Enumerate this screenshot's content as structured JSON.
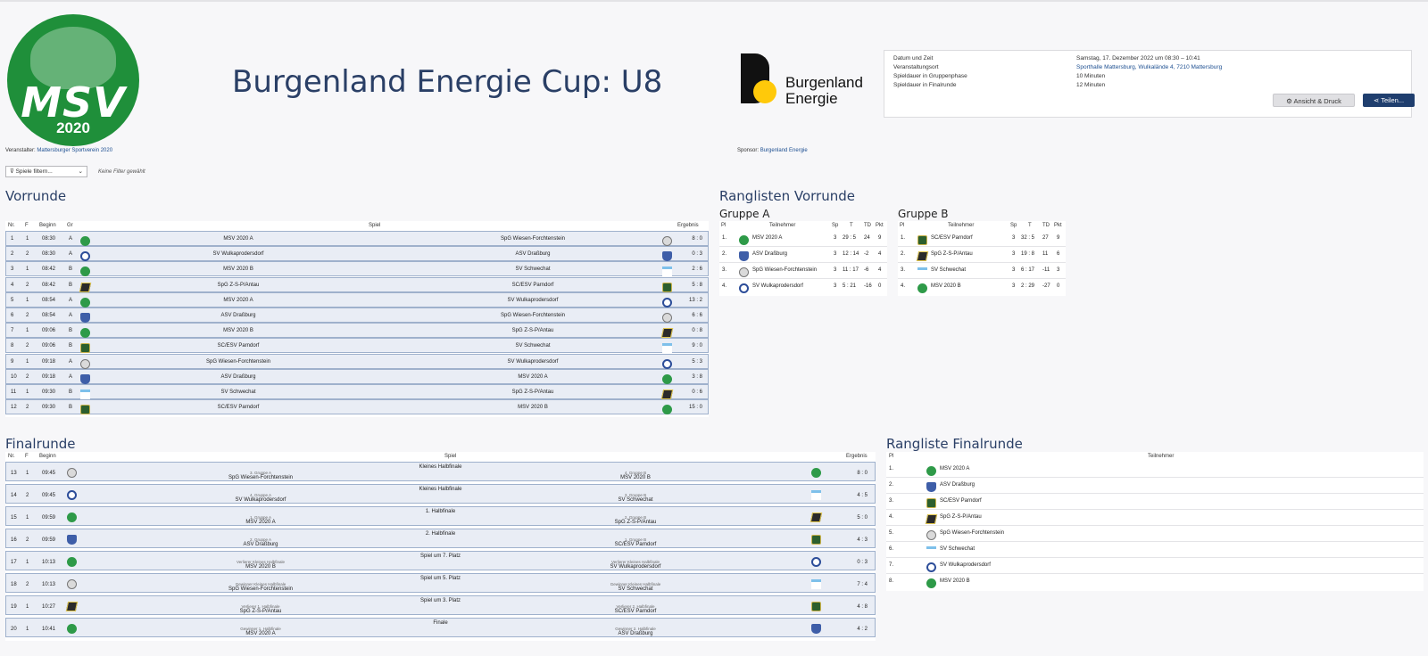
{
  "logo": {
    "text": "MSV",
    "year": "2020"
  },
  "title": "Burgenland Energie Cup: U8",
  "sponsor_logo": {
    "line1": "Burgenland",
    "line2": "Energie"
  },
  "info": [
    {
      "label": "Datum und Zeit",
      "value": "Samstag, 17. Dezember 2022 um 08:30 – 10:41"
    },
    {
      "label": "Veranstaltungsort",
      "value": "Sporthalle Mattersburg, Wulkalände 4, 7210 Mattersburg"
    },
    {
      "label": "Spieldauer in Gruppenphase",
      "value": "10 Minuten"
    },
    {
      "label": "Spieldauer in Finalrunde",
      "value": "12 Minuten"
    }
  ],
  "buttons": {
    "view": "Ansicht & Druck",
    "share": "Teilen..."
  },
  "organizer": {
    "label": "Veranstalter:",
    "name": "Mattersburger Sportverein 2020"
  },
  "sponsor": {
    "label": "Sponsor:",
    "name": "Burgenland Energie"
  },
  "filter": {
    "label": "Spiele filtern...",
    "none": "Keine Filter gewählt"
  },
  "vorrunde": {
    "title": "Vorrunde",
    "headers": [
      "Nr.",
      "F",
      "Beginn",
      "Gr",
      "Spiel",
      "Ergebnis"
    ],
    "rows": [
      {
        "nr": "1",
        "f": "1",
        "time": "08:30",
        "gr": "A",
        "home": "MSV 2020 A",
        "away": "SpG Wiesen-Forchtenstein",
        "result": "8 : 0",
        "hc": "msv",
        "ac": "wies"
      },
      {
        "nr": "2",
        "f": "2",
        "time": "08:30",
        "gr": "A",
        "home": "SV Wulkaprodersdorf",
        "away": "ASV Draßburg",
        "result": "0 : 3",
        "hc": "wulk",
        "ac": "asv"
      },
      {
        "nr": "3",
        "f": "1",
        "time": "08:42",
        "gr": "B",
        "home": "MSV 2020 B",
        "away": "SV Schwechat",
        "result": "2 : 6",
        "hc": "msv",
        "ac": "svs"
      },
      {
        "nr": "4",
        "f": "2",
        "time": "08:42",
        "gr": "B",
        "home": "SpG Z-S-P/Antau",
        "away": "SC/ESV Parndorf",
        "result": "5 : 8",
        "hc": "spgz",
        "ac": "sc"
      },
      {
        "nr": "5",
        "f": "1",
        "time": "08:54",
        "gr": "A",
        "home": "MSV 2020 A",
        "away": "SV Wulkaprodersdorf",
        "result": "13 : 2",
        "hc": "msv",
        "ac": "wulk"
      },
      {
        "nr": "6",
        "f": "2",
        "time": "08:54",
        "gr": "A",
        "home": "ASV Draßburg",
        "away": "SpG Wiesen-Forchtenstein",
        "result": "6 : 6",
        "hc": "asv",
        "ac": "wies"
      },
      {
        "nr": "7",
        "f": "1",
        "time": "09:06",
        "gr": "B",
        "home": "MSV 2020 B",
        "away": "SpG Z-S-P/Antau",
        "result": "0 : 8",
        "hc": "msv",
        "ac": "spgz"
      },
      {
        "nr": "8",
        "f": "2",
        "time": "09:06",
        "gr": "B",
        "home": "SC/ESV Parndorf",
        "away": "SV Schwechat",
        "result": "9 : 0",
        "hc": "sc",
        "ac": "svs"
      },
      {
        "nr": "9",
        "f": "1",
        "time": "09:18",
        "gr": "A",
        "home": "SpG Wiesen-Forchtenstein",
        "away": "SV Wulkaprodersdorf",
        "result": "5 : 3",
        "hc": "wies",
        "ac": "wulk"
      },
      {
        "nr": "10",
        "f": "2",
        "time": "09:18",
        "gr": "A",
        "home": "ASV Draßburg",
        "away": "MSV 2020 A",
        "result": "3 : 8",
        "hc": "asv",
        "ac": "msv"
      },
      {
        "nr": "11",
        "f": "1",
        "time": "09:30",
        "gr": "B",
        "home": "SV Schwechat",
        "away": "SpG Z-S-P/Antau",
        "result": "0 : 6",
        "hc": "svs",
        "ac": "spgz"
      },
      {
        "nr": "12",
        "f": "2",
        "time": "09:30",
        "gr": "B",
        "home": "SC/ESV Parndorf",
        "away": "MSV 2020 B",
        "result": "15 : 0",
        "hc": "sc",
        "ac": "msv"
      }
    ]
  },
  "ranglisten_vorrunde": {
    "title": "Ranglisten Vorrunde",
    "headers": [
      "Pl",
      "Teilnehmer",
      "Sp",
      "T",
      "TD",
      "Pkt"
    ],
    "groups": [
      {
        "name": "Gruppe A",
        "rows": [
          {
            "pl": "1.",
            "team": "MSV 2020 A",
            "c": "msv",
            "sp": "3",
            "t": "29 : 5",
            "td": "24",
            "pkt": "9"
          },
          {
            "pl": "2.",
            "team": "ASV Draßburg",
            "c": "asv",
            "sp": "3",
            "t": "12 : 14",
            "td": "-2",
            "pkt": "4"
          },
          {
            "pl": "3.",
            "team": "SpG Wiesen-Forchtenstein",
            "c": "wies",
            "sp": "3",
            "t": "11 : 17",
            "td": "-6",
            "pkt": "4"
          },
          {
            "pl": "4.",
            "team": "SV Wulkaprodersdorf",
            "c": "wulk",
            "sp": "3",
            "t": "5 : 21",
            "td": "-16",
            "pkt": "0"
          }
        ]
      },
      {
        "name": "Gruppe B",
        "rows": [
          {
            "pl": "1.",
            "team": "SC/ESV Parndorf",
            "c": "sc",
            "sp": "3",
            "t": "32 : 5",
            "td": "27",
            "pkt": "9"
          },
          {
            "pl": "2.",
            "team": "SpG Z-S-P/Antau",
            "c": "spgz",
            "sp": "3",
            "t": "19 : 8",
            "td": "11",
            "pkt": "6"
          },
          {
            "pl": "3.",
            "team": "SV Schwechat",
            "c": "svs",
            "sp": "3",
            "t": "6 : 17",
            "td": "-11",
            "pkt": "3"
          },
          {
            "pl": "4.",
            "team": "MSV 2020 B",
            "c": "msv",
            "sp": "3",
            "t": "2 : 29",
            "td": "-27",
            "pkt": "0"
          }
        ]
      }
    ]
  },
  "finalrunde": {
    "title": "Finalrunde",
    "headers": [
      "Nr.",
      "F",
      "Beginn",
      "Spiel",
      "Ergebnis"
    ],
    "rows": [
      {
        "nr": "13",
        "f": "1",
        "time": "09:45",
        "round": "Kleines Halbfinale",
        "hl": "3. Gruppe A",
        "home": "SpG Wiesen-Forchtenstein",
        "al": "4. Gruppe B",
        "away": "MSV 2020 B",
        "result": "8 : 0",
        "hc": "wies",
        "ac": "msv"
      },
      {
        "nr": "14",
        "f": "2",
        "time": "09:45",
        "round": "Kleines Halbfinale",
        "hl": "4. Gruppe A",
        "home": "SV Wulkaprodersdorf",
        "al": "3. Gruppe B",
        "away": "SV Schwechat",
        "result": "4 : 5",
        "hc": "wulk",
        "ac": "svs"
      },
      {
        "nr": "15",
        "f": "1",
        "time": "09:59",
        "round": "1. Halbfinale",
        "hl": "1. Gruppe A",
        "home": "MSV 2020 A",
        "al": "2. Gruppe B",
        "away": "SpG Z-S-P/Antau",
        "result": "5 : 0",
        "hc": "msv",
        "ac": "spgz"
      },
      {
        "nr": "16",
        "f": "2",
        "time": "09:59",
        "round": "2. Halbfinale",
        "hl": "2. Gruppe A",
        "home": "ASV Draßburg",
        "al": "1. Gruppe B",
        "away": "SC/ESV Parndorf",
        "result": "4 : 3",
        "hc": "asv",
        "ac": "sc"
      },
      {
        "nr": "17",
        "f": "1",
        "time": "10:13",
        "round": "Spiel um 7. Platz",
        "hl": "Verlierer Kleines Halbfinale",
        "home": "MSV 2020 B",
        "al": "Verlierer Kleines Halbfinale",
        "away": "SV Wulkaprodersdorf",
        "result": "0 : 3",
        "hc": "msv",
        "ac": "wulk"
      },
      {
        "nr": "18",
        "f": "2",
        "time": "10:13",
        "round": "Spiel um 5. Platz",
        "hl": "Gewinner Kleines Halbfinale",
        "home": "SpG Wiesen-Forchtenstein",
        "al": "Gewinner Kleines Halbfinale",
        "away": "SV Schwechat",
        "result": "7 : 4",
        "hc": "wies",
        "ac": "svs"
      },
      {
        "nr": "19",
        "f": "1",
        "time": "10:27",
        "round": "Spiel um 3. Platz",
        "hl": "Verlierer 1. Halbfinale",
        "home": "SpG Z-S-P/Antau",
        "al": "Verlierer 2. Halbfinale",
        "away": "SC/ESV Parndorf",
        "result": "4 : 8",
        "hc": "spgz",
        "ac": "sc"
      },
      {
        "nr": "20",
        "f": "1",
        "time": "10:41",
        "round": "Finale",
        "hl": "Gewinner 1. Halbfinale",
        "home": "MSV 2020 A",
        "al": "Gewinner 2. Halbfinale",
        "away": "ASV Draßburg",
        "result": "4 : 2",
        "hc": "msv",
        "ac": "asv"
      }
    ]
  },
  "rangliste_final": {
    "title": "Rangliste Finalrunde",
    "headers": [
      "Pl",
      "Teilnehmer"
    ],
    "rows": [
      {
        "pl": "1.",
        "team": "MSV 2020 A",
        "c": "msv"
      },
      {
        "pl": "2.",
        "team": "ASV Draßburg",
        "c": "asv"
      },
      {
        "pl": "3.",
        "team": "SC/ESV Parndorf",
        "c": "sc"
      },
      {
        "pl": "4.",
        "team": "SpG Z-S-P/Antau",
        "c": "spgz"
      },
      {
        "pl": "5.",
        "team": "SpG Wiesen-Forchtenstein",
        "c": "wies"
      },
      {
        "pl": "6.",
        "team": "SV Schwechat",
        "c": "svs"
      },
      {
        "pl": "7.",
        "team": "SV Wulkaprodersdorf",
        "c": "wulk"
      },
      {
        "pl": "8.",
        "team": "MSV 2020 B",
        "c": "msv"
      }
    ]
  }
}
